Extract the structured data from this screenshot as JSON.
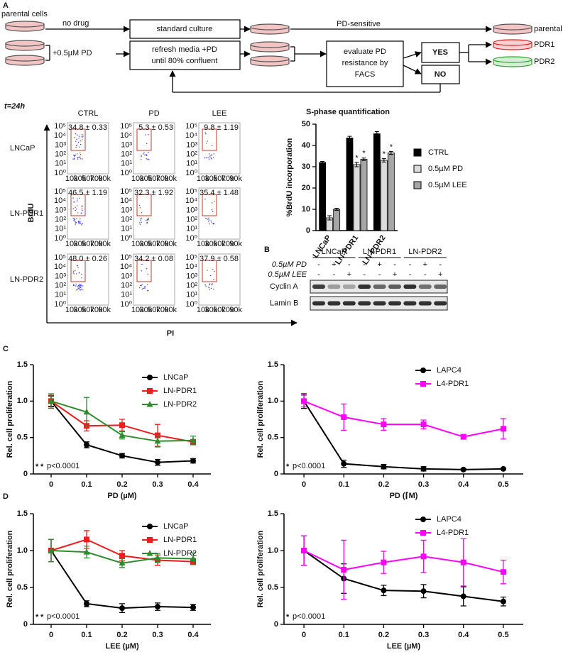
{
  "panel_labels": [
    "A",
    "B",
    "C",
    "D"
  ],
  "workflow": {
    "start": "parental cells",
    "no_drug": "no drug",
    "drug": "+0.5µM PD",
    "standard": "standard culture",
    "refresh": [
      "refresh media +PD",
      "until 80% confluent"
    ],
    "sensitive": "PD-sensitive",
    "evaluate": [
      "evaluate PD",
      "resistance by",
      "FACS"
    ],
    "yes": "YES",
    "no": "NO",
    "outcomes": [
      "parental",
      "PDR1",
      "PDR2"
    ]
  },
  "facs": {
    "time": "t=24h",
    "columns": [
      "CTRL",
      "PD",
      "LEE"
    ],
    "rows": [
      {
        "name": "LNCaP",
        "values": [
          "34.8 ± 0.33",
          "5.3 ± 0.53",
          "9.8 ± 1.19"
        ]
      },
      {
        "name": "LN-PDR1",
        "values": [
          "46.5 ± 1.19",
          "32.3 ± 1.92",
          "35.4 ± 1.48"
        ]
      },
      {
        "name": "LN-PDR2",
        "values": [
          "48.0 ± 0.26",
          "34.2 ± 0.08",
          "37.9 ± 0.58"
        ]
      }
    ],
    "y_ticks": [
      "10⁵",
      "10⁴",
      "10³",
      "10²",
      "10¹",
      "10⁰"
    ],
    "x_ticks": [
      "10k",
      "30k",
      "50k",
      "70k",
      "90k"
    ],
    "y_label": "BrdU",
    "x_label": "PI"
  },
  "blot": {
    "groups": [
      "LNCaP",
      "LN-PDR1",
      "LN-PDR2"
    ],
    "treatments": [
      {
        "name": "0.5µM PD",
        "signs": [
          "-",
          "+",
          "-",
          "-",
          "+",
          "-",
          "-",
          "+",
          "-"
        ]
      },
      {
        "name": "0.5µM LEE",
        "signs": [
          "-",
          "-",
          "+",
          "-",
          "-",
          "+",
          "-",
          "-",
          "+"
        ]
      }
    ],
    "proteins": [
      "Cyclin A",
      "Lamin B"
    ]
  },
  "chart_data": [
    {
      "type": "bar",
      "title": "S-phase quantification",
      "y_label": "%BrdU incorporation",
      "categories": [
        "LNCaP",
        "LN-PDR1",
        "LN-PDR2"
      ],
      "series": [
        {
          "name": "CTRL",
          "color": "#000000",
          "values": [
            32,
            43.5,
            45.5
          ],
          "errors": [
            0.5,
            0.8,
            1
          ]
        },
        {
          "name": "0.5µM PD",
          "color": "#dcdcdc",
          "values": [
            6,
            31,
            33
          ],
          "errors": [
            1,
            1,
            0.8
          ],
          "marks": [
            null,
            "*",
            "*"
          ]
        },
        {
          "name": "0.5µM LEE",
          "color": "#a6a6a6",
          "values": [
            10,
            33.5,
            36.5
          ],
          "errors": [
            0.5,
            0.6,
            0.7
          ],
          "marks": [
            null,
            "*",
            "*"
          ]
        }
      ],
      "ylim": [
        0,
        50
      ],
      "yticks": [
        0,
        10,
        20,
        30,
        40,
        50
      ]
    },
    {
      "type": "line",
      "y_label": "Rel. cell proliferation",
      "x_label": "PD (µM)",
      "x": [
        0,
        0.1,
        0.2,
        0.3,
        0.4
      ],
      "series": [
        {
          "name": "LNCaP",
          "color": "#000000",
          "marker": "circle",
          "values": [
            1.0,
            0.4,
            0.25,
            0.16,
            0.18
          ],
          "errors": [
            0.07,
            0.04,
            0.03,
            0.04,
            0.03
          ]
        },
        {
          "name": "LN-PDR1",
          "color": "#ee1c1c",
          "marker": "square",
          "values": [
            1.0,
            0.66,
            0.67,
            0.53,
            0.44
          ],
          "errors": [
            0.08,
            0.07,
            0.08,
            0.15,
            0.03
          ]
        },
        {
          "name": "LN-PDR2",
          "color": "#2e8b2e",
          "marker": "triangle",
          "values": [
            1.0,
            0.85,
            0.53,
            0.45,
            0.46
          ],
          "errors": [
            0.1,
            0.2,
            0.05,
            0.08,
            0.06
          ]
        }
      ],
      "xlim": [
        -0.05,
        0.45
      ],
      "xticks": [
        0,
        0.1,
        0.2,
        0.3,
        0.4
      ],
      "ylim": [
        0,
        1.5
      ],
      "yticks": [
        0,
        0.5,
        {
          "value": 1,
          "label": "1.0"
        },
        1.5
      ],
      "asterisks": [
        {
          "text": "*",
          "color": "#ee1c1c"
        },
        {
          "text": "*",
          "color": "#2e8b2e"
        }
      ],
      "annotation": "p<0.0001"
    },
    {
      "type": "line",
      "y_label": "Rel. cell proliferation",
      "x_label": "PD (⌈M)",
      "x": [
        0,
        0.1,
        0.2,
        0.3,
        0.4,
        0.5
      ],
      "series": [
        {
          "name": "LAPC4",
          "color": "#000000",
          "marker": "circle",
          "values": [
            1.0,
            0.14,
            0.1,
            0.07,
            0.06,
            0.07
          ],
          "errors": [
            0.1,
            0.05,
            0.03,
            0.03,
            0.01,
            0.01
          ]
        },
        {
          "name": "L4-PDR1",
          "color": "#ff00ff",
          "marker": "square",
          "values": [
            1.0,
            0.78,
            0.68,
            0.68,
            0.51,
            0.62
          ],
          "errors": [
            0.08,
            0.18,
            0.08,
            0.06,
            0.03,
            0.14
          ]
        }
      ],
      "xlim": [
        -0.05,
        0.55
      ],
      "xticks": [
        0,
        0.1,
        0.2,
        0.3,
        0.4,
        0.5
      ],
      "ylim": [
        0,
        1.5
      ],
      "yticks": [
        0,
        0.5,
        {
          "value": 1,
          "label": "1.0"
        },
        1.5
      ],
      "asterisks": [
        {
          "text": "*",
          "color": "#ff66cc"
        }
      ],
      "annotation": "p<0.0001"
    },
    {
      "type": "line",
      "y_label": "Rel. cell proliferation",
      "x_label": "LEE (µM)",
      "x": [
        0,
        0.1,
        0.2,
        0.3,
        0.4
      ],
      "series": [
        {
          "name": "LNCaP",
          "color": "#000000",
          "marker": "circle",
          "values": [
            1.0,
            0.28,
            0.22,
            0.24,
            0.23
          ],
          "errors": [
            0.15,
            0.04,
            0.06,
            0.05,
            0.04
          ]
        },
        {
          "name": "LN-PDR1",
          "color": "#ee1c1c",
          "marker": "square",
          "values": [
            1.0,
            1.15,
            0.93,
            0.87,
            0.85
          ],
          "errors": [
            0.15,
            0.12,
            0.07,
            0.07,
            0.04
          ]
        },
        {
          "name": "LN-PDR2",
          "color": "#2e8b2e",
          "marker": "triangle",
          "values": [
            1.0,
            0.98,
            0.83,
            0.9,
            0.89
          ],
          "errors": [
            0.15,
            0.08,
            0.06,
            0.06,
            0.08
          ]
        }
      ],
      "xlim": [
        -0.05,
        0.45
      ],
      "xticks": [
        0,
        0.1,
        0.2,
        0.3,
        0.4
      ],
      "ylim": [
        0,
        1.5
      ],
      "yticks": [
        0,
        0.5,
        {
          "value": 1,
          "label": "1.0"
        },
        1.5
      ],
      "asterisks": [
        {
          "text": "*",
          "color": "#ee1c1c"
        },
        {
          "text": "*",
          "color": "#2e8b2e"
        }
      ],
      "annotation": "p<0.0001"
    },
    {
      "type": "line",
      "y_label": "Rel. cell proliferation",
      "x_label": "LEE (µM)",
      "x": [
        0,
        0.1,
        0.2,
        0.3,
        0.4,
        0.5
      ],
      "series": [
        {
          "name": "LAPC4",
          "color": "#000000",
          "marker": "circle",
          "values": [
            1.0,
            0.62,
            0.46,
            0.45,
            0.38,
            0.31
          ],
          "errors": [
            0.2,
            0.2,
            0.07,
            0.09,
            0.13,
            0.06
          ]
        },
        {
          "name": "L4-PDR1",
          "color": "#ff00ff",
          "marker": "square",
          "values": [
            1.0,
            0.74,
            0.84,
            0.92,
            0.84,
            0.71
          ],
          "errors": [
            0.2,
            0.4,
            0.15,
            0.22,
            0.32,
            0.16
          ]
        }
      ],
      "xlim": [
        -0.05,
        0.55
      ],
      "xticks": [
        0,
        0.1,
        0.2,
        0.3,
        0.4,
        0.5
      ],
      "ylim": [
        0,
        1.5
      ],
      "yticks": [
        0,
        0.5,
        {
          "value": 1,
          "label": "1.0"
        },
        1.5
      ],
      "asterisks": [
        {
          "text": "*",
          "color": "#ff66cc"
        }
      ],
      "annotation": "p<0.0001"
    }
  ]
}
